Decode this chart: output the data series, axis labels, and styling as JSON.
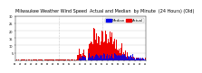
{
  "title": "Milwaukee Weather Wind Speed  Actual and Median  by Minute  (24 Hours) (Old)",
  "legend_labels": [
    "Median",
    "Actual"
  ],
  "legend_colors": [
    "#0000ee",
    "#ee0000"
  ],
  "background_color": "#ffffff",
  "plot_bg_color": "#ffffff",
  "grid_color": "#cccccc",
  "vline_color": "#999999",
  "ylim": [
    0,
    30
  ],
  "xlim": [
    0,
    1440
  ],
  "vline_positions": [
    480,
    960
  ],
  "ytick_values": [
    5,
    10,
    15,
    20,
    25,
    30
  ],
  "xtick_step": 60,
  "title_fontsize": 3.5,
  "tick_fontsize": 2.5,
  "legend_fontsize": 2.8
}
